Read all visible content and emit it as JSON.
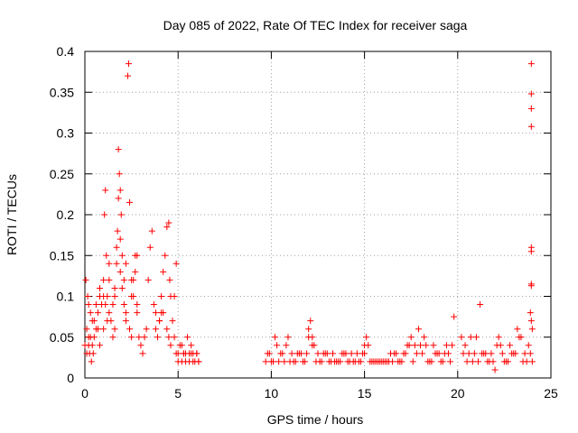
{
  "chart_data": {
    "type": "scatter",
    "title": "Day 085 of 2022, Rate Of TEC Index for receiver saga",
    "xlabel": "GPS time / hours",
    "ylabel": "ROTI / TECUs",
    "xlim": [
      0,
      25
    ],
    "ylim": [
      0,
      0.4
    ],
    "xticks": [
      0,
      5,
      10,
      15,
      20,
      25
    ],
    "xtick_labels": [
      "0",
      "5",
      "10",
      "15",
      "20",
      "25"
    ],
    "yticks": [
      0,
      0.05,
      0.1,
      0.15,
      0.2,
      0.25,
      0.3,
      0.35,
      0.4
    ],
    "ytick_labels": [
      "0",
      "0.05",
      "0.1",
      "0.15",
      "0.2",
      "0.25",
      "0.3",
      "0.35",
      "0.4"
    ],
    "grid": true,
    "marker": "+",
    "color": "#ff0000",
    "series": [
      {
        "name": "ROTI",
        "x": [
          0.0,
          0.05,
          0.1,
          0.15,
          0.2,
          0.25,
          0.3,
          0.35,
          0.4,
          0.45,
          0.5,
          0.6,
          0.7,
          0.8,
          0.9,
          1.0,
          1.05,
          1.1,
          1.15,
          1.2,
          1.3,
          1.4,
          1.5,
          1.6,
          1.7,
          1.75,
          1.8,
          1.85,
          1.9,
          1.95,
          2.0,
          2.1,
          2.2,
          2.3,
          2.35,
          2.4,
          2.5,
          2.6,
          2.7,
          2.8,
          2.9,
          3.0,
          3.1,
          3.2,
          3.3,
          3.4,
          3.5,
          3.6,
          3.7,
          3.8,
          3.9,
          4.0,
          4.1,
          4.2,
          4.3,
          4.4,
          4.5,
          4.55,
          4.6,
          4.7,
          4.8,
          4.9,
          5.0,
          5.1,
          5.2,
          5.3,
          5.4,
          5.5,
          5.6,
          5.7,
          5.8,
          5.9,
          6.0,
          6.1,
          0.1,
          0.2,
          0.3,
          0.4,
          0.6,
          0.7,
          0.8,
          1.0,
          1.1,
          1.2,
          1.3,
          1.5,
          1.6,
          1.7,
          1.8,
          1.9,
          2.0,
          2.1,
          2.2,
          2.4,
          2.5,
          2.6,
          2.7,
          2.8,
          3.8,
          4.0,
          4.2,
          4.4,
          4.6,
          4.8,
          5.0,
          5.2,
          5.4,
          5.6,
          5.8,
          6.0,
          0.2,
          0.5,
          0.8,
          1.0,
          1.3,
          1.6,
          1.9,
          2.2,
          2.5,
          2.8,
          4.1,
          4.5,
          4.9,
          5.3,
          5.7,
          6.1,
          9.7,
          9.9,
          10.1,
          10.3,
          10.5,
          10.7,
          10.9,
          11.1,
          11.3,
          11.5,
          11.7,
          11.9,
          12.0,
          12.1,
          12.2,
          12.3,
          12.5,
          12.7,
          12.9,
          13.1,
          13.3,
          13.5,
          13.7,
          13.9,
          14.1,
          14.3,
          14.5,
          14.7,
          14.9,
          15.0,
          15.1,
          15.3,
          15.5,
          15.7,
          15.9,
          16.1,
          16.3,
          16.5,
          16.7,
          16.9,
          17.1,
          17.3,
          17.5,
          17.7,
          17.9,
          18.1,
          18.3,
          18.5,
          18.7,
          18.9,
          19.1,
          19.3,
          19.5,
          19.7,
          19.8,
          9.8,
          10.2,
          10.6,
          11.0,
          11.4,
          11.8,
          12.2,
          12.6,
          13.0,
          13.4,
          13.8,
          14.2,
          14.6,
          15.0,
          15.4,
          15.8,
          16.2,
          16.6,
          17.0,
          17.4,
          17.8,
          18.2,
          18.6,
          19.0,
          19.4,
          10.0,
          10.4,
          10.8,
          11.2,
          11.6,
          12.0,
          12.4,
          12.8,
          13.2,
          13.6,
          14.0,
          14.4,
          14.8,
          15.2,
          15.6,
          16.0,
          16.4,
          16.8,
          17.2,
          17.6,
          18.0,
          18.4,
          18.8,
          19.2,
          19.6,
          20.2,
          20.4,
          20.6,
          20.8,
          21.0,
          21.2,
          21.4,
          21.6,
          21.8,
          22.0,
          22.2,
          22.4,
          22.6,
          22.8,
          23.0,
          23.2,
          23.4,
          23.6,
          23.8,
          23.9,
          24.0,
          20.3,
          20.7,
          21.1,
          21.5,
          21.9,
          22.3,
          22.7,
          23.1,
          23.5,
          23.9,
          20.5,
          20.9,
          21.3,
          21.7,
          22.1,
          22.5,
          22.9,
          23.3,
          23.7,
          24.0,
          23.95,
          23.95,
          23.95,
          23.95,
          23.95,
          23.95,
          23.95,
          23.95,
          23.95
        ],
        "y": [
          0.04,
          0.12,
          0.06,
          0.1,
          0.09,
          0.03,
          0.05,
          0.02,
          0.07,
          0.03,
          0.05,
          0.06,
          0.08,
          0.1,
          0.09,
          0.12,
          0.2,
          0.23,
          0.15,
          0.1,
          0.08,
          0.07,
          0.05,
          0.1,
          0.14,
          0.18,
          0.28,
          0.25,
          0.23,
          0.2,
          0.15,
          0.12,
          0.08,
          0.37,
          0.385,
          0.215,
          0.1,
          0.12,
          0.15,
          0.08,
          0.05,
          0.04,
          0.03,
          0.05,
          0.06,
          0.12,
          0.16,
          0.18,
          0.09,
          0.06,
          0.05,
          0.07,
          0.1,
          0.13,
          0.15,
          0.185,
          0.19,
          0.12,
          0.1,
          0.07,
          0.05,
          0.03,
          0.03,
          0.04,
          0.02,
          0.03,
          0.02,
          0.05,
          0.03,
          0.03,
          0.02,
          0.02,
          0.03,
          0.02,
          0.03,
          0.04,
          0.08,
          0.04,
          0.09,
          0.06,
          0.11,
          0.06,
          0.09,
          0.07,
          0.12,
          0.09,
          0.11,
          0.16,
          0.22,
          0.13,
          0.11,
          0.09,
          0.07,
          0.06,
          0.12,
          0.1,
          0.13,
          0.09,
          0.08,
          0.07,
          0.08,
          0.06,
          0.04,
          0.1,
          0.02,
          0.04,
          0.03,
          0.02,
          0.03,
          0.03,
          0.05,
          0.07,
          0.04,
          0.1,
          0.14,
          0.06,
          0.17,
          0.14,
          0.05,
          0.15,
          0.08,
          0.05,
          0.14,
          0.03,
          0.04,
          0.02,
          0.02,
          0.03,
          0.02,
          0.04,
          0.03,
          0.02,
          0.05,
          0.03,
          0.02,
          0.03,
          0.02,
          0.03,
          0.06,
          0.07,
          0.05,
          0.04,
          0.03,
          0.02,
          0.03,
          0.02,
          0.03,
          0.02,
          0.02,
          0.03,
          0.02,
          0.03,
          0.02,
          0.02,
          0.03,
          0.04,
          0.05,
          0.02,
          0.02,
          0.02,
          0.02,
          0.02,
          0.02,
          0.02,
          0.03,
          0.02,
          0.03,
          0.04,
          0.05,
          0.04,
          0.06,
          0.03,
          0.04,
          0.02,
          0.04,
          0.03,
          0.02,
          0.03,
          0.03,
          0.04,
          0.075,
          0.03,
          0.05,
          0.03,
          0.02,
          0.03,
          0.02,
          0.04,
          0.02,
          0.03,
          0.02,
          0.03,
          0.02,
          0.03,
          0.03,
          0.02,
          0.02,
          0.02,
          0.03,
          0.02,
          0.04,
          0.03,
          0.05,
          0.02,
          0.03,
          0.04,
          0.02,
          0.02,
          0.04,
          0.02,
          0.03,
          0.05,
          0.02,
          0.03,
          0.02,
          0.02,
          0.03,
          0.02,
          0.02,
          0.04,
          0.02,
          0.02,
          0.03,
          0.02,
          0.03,
          0.02,
          0.04,
          0.02,
          0.03,
          0.02,
          0.02,
          0.05,
          0.04,
          0.03,
          0.02,
          0.05,
          0.09,
          0.03,
          0.02,
          0.03,
          0.01,
          0.05,
          0.03,
          0.02,
          0.04,
          0.03,
          0.06,
          0.05,
          0.03,
          0.04,
          0.08,
          0.06,
          0.03,
          0.05,
          0.02,
          0.03,
          0.02,
          0.04,
          0.02,
          0.03,
          0.02,
          0.03,
          0.02,
          0.03,
          0.03,
          0.02,
          0.04,
          0.02,
          0.03,
          0.05,
          0.02,
          0.02,
          0.385,
          0.348,
          0.33,
          0.308,
          0.16,
          0.155,
          0.115,
          0.113,
          0.07
        ]
      }
    ]
  }
}
